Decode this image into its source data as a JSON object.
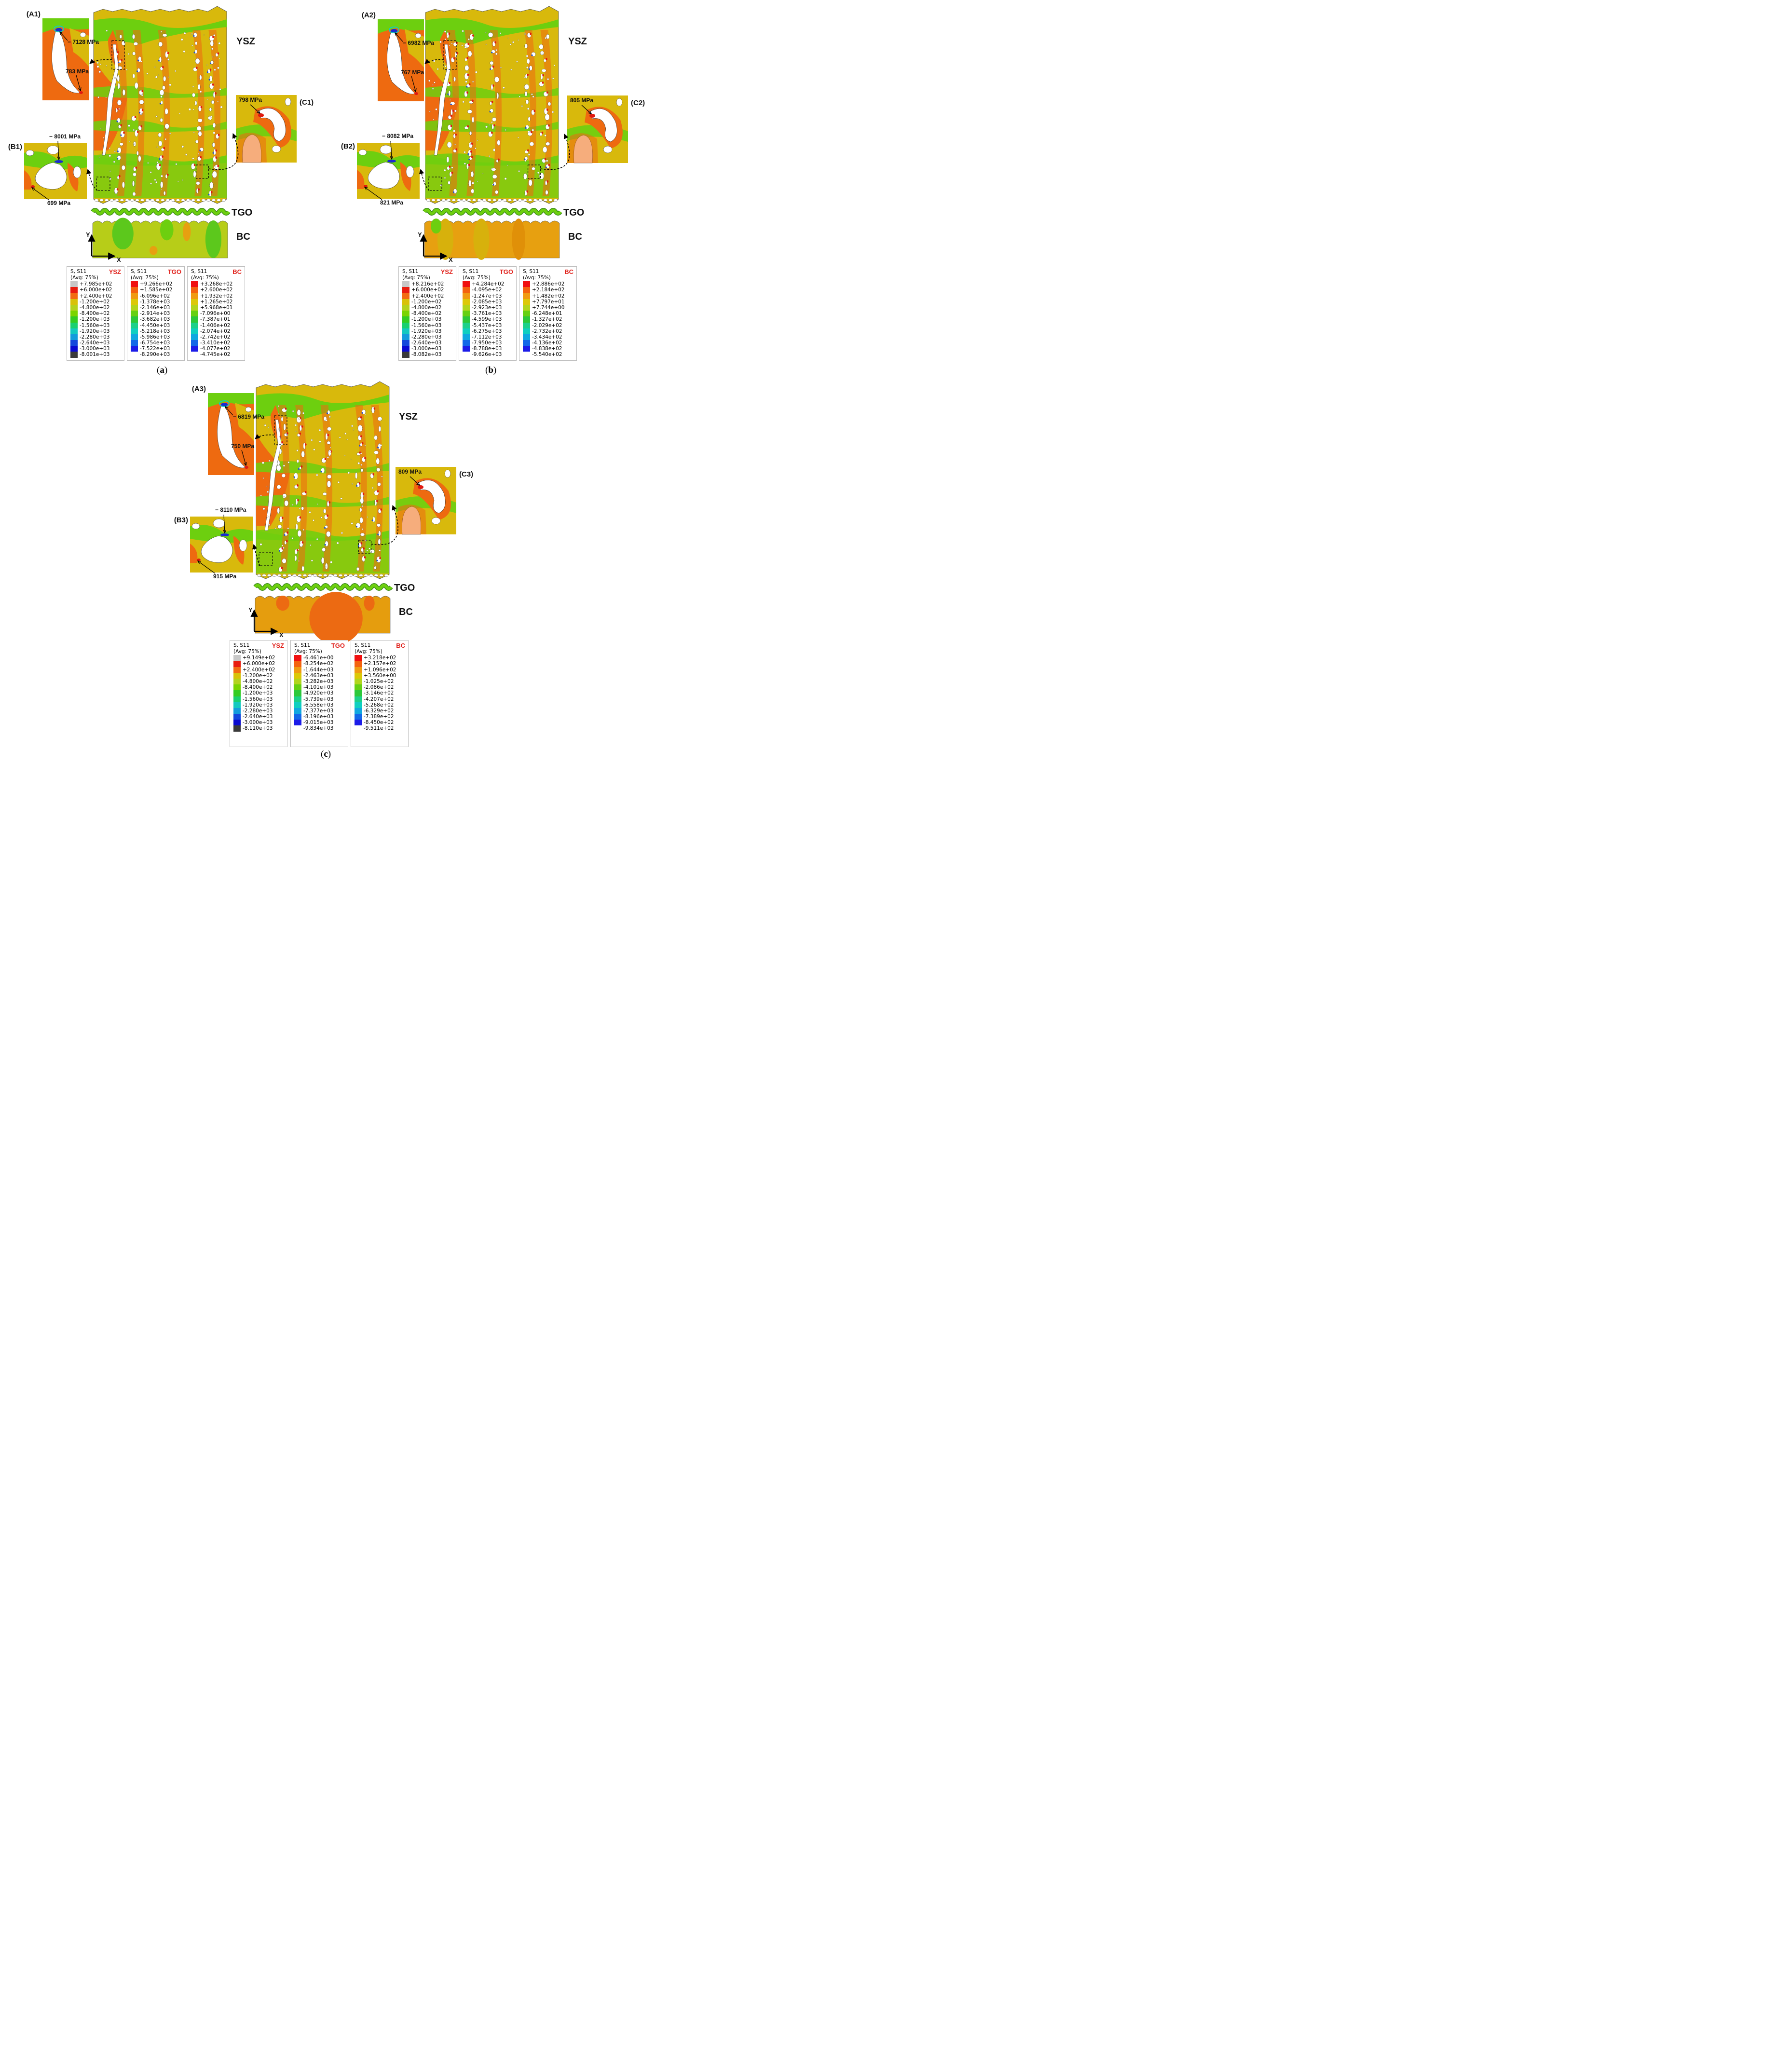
{
  "panels": [
    {
      "id": "a",
      "caption": "a",
      "layer_labels": {
        "top_coat": "YSZ",
        "oxide": "TGO",
        "bond_coat": "BC"
      },
      "axes": {
        "y": "Y",
        "x": "X"
      },
      "insets": [
        {
          "name": "(A1)",
          "callouts": [
            "− 7128 MPa",
            "783 MPa"
          ]
        },
        {
          "name": "(B1)",
          "callouts": [
            "− 8001 MPa",
            "699 MPa"
          ]
        },
        {
          "name": "(C1)",
          "callouts": [
            "798 MPa"
          ]
        }
      ],
      "legends": [
        {
          "material": "YSZ",
          "title": "S, S11",
          "avg": "(Avg: 75%)",
          "values": [
            "+7.985e+02",
            "+6.000e+02",
            "+2.400e+02",
            "-1.200e+02",
            "-4.800e+02",
            "-8.400e+02",
            "-1.200e+03",
            "-1.560e+03",
            "-1.920e+03",
            "-2.280e+03",
            "-2.640e+03",
            "-3.000e+03",
            "-8.001e+03"
          ]
        },
        {
          "material": "TGO",
          "title": "S, S11",
          "avg": "(Avg: 75%)",
          "values": [
            "+9.266e+02",
            "+1.585e+02",
            "-6.096e+02",
            "-1.378e+03",
            "-2.146e+03",
            "-2.914e+03",
            "-3.682e+03",
            "-4.450e+03",
            "-5.218e+03",
            "-5.986e+03",
            "-6.754e+03",
            "-7.522e+03",
            "-8.290e+03"
          ]
        },
        {
          "material": "BC",
          "title": "S, S11",
          "avg": "(Avg: 75%)",
          "values": [
            "+3.268e+02",
            "+2.600e+02",
            "+1.932e+02",
            "+1.265e+02",
            "+5.968e+01",
            "-7.096e+00",
            "-7.387e+01",
            "-1.406e+02",
            "-2.074e+02",
            "-2.742e+02",
            "-3.410e+02",
            "-4.077e+02",
            "-4.745e+02"
          ]
        }
      ]
    },
    {
      "id": "b",
      "caption": "b",
      "layer_labels": {
        "top_coat": "YSZ",
        "oxide": "TGO",
        "bond_coat": "BC"
      },
      "axes": {
        "y": "Y",
        "x": "X"
      },
      "insets": [
        {
          "name": "(A2)",
          "callouts": [
            "− 6982 MPa",
            "767 MPa"
          ]
        },
        {
          "name": "(B2)",
          "callouts": [
            "− 8082 MPa",
            "821 MPa"
          ]
        },
        {
          "name": "(C2)",
          "callouts": [
            "805 MPa"
          ]
        }
      ],
      "legends": [
        {
          "material": "YSZ",
          "title": "S, S11",
          "avg": "(Avg: 75%)",
          "values": [
            "+8.216e+02",
            "+6.000e+02",
            "+2.400e+02",
            "-1.200e+02",
            "-4.800e+02",
            "-8.400e+02",
            "-1.200e+03",
            "-1.560e+03",
            "-1.920e+03",
            "-2.280e+03",
            "-2.640e+03",
            "-3.000e+03",
            "-8.082e+03"
          ]
        },
        {
          "material": "TGO",
          "title": "S, S11",
          "avg": "(Avg: 75%)",
          "values": [
            "+4.284e+02",
            "-4.095e+02",
            "-1.247e+03",
            "-2.085e+03",
            "-2.923e+03",
            "-3.761e+03",
            "-4.599e+03",
            "-5.437e+03",
            "-6.275e+03",
            "-7.112e+03",
            "-7.950e+03",
            "-8.788e+03",
            "-9.626e+03"
          ]
        },
        {
          "material": "BC",
          "title": "S, S11",
          "avg": "(Avg: 75%)",
          "values": [
            "+2.886e+02",
            "+2.184e+02",
            "+1.482e+02",
            "+7.797e+01",
            "+7.744e+00",
            "-6.248e+01",
            "-1.327e+02",
            "-2.029e+02",
            "-2.732e+02",
            "-3.434e+02",
            "-4.136e+02",
            "-4.838e+02",
            "-5.540e+02"
          ]
        }
      ]
    },
    {
      "id": "c",
      "caption": "c",
      "layer_labels": {
        "top_coat": "YSZ",
        "oxide": "TGO",
        "bond_coat": "BC"
      },
      "axes": {
        "y": "Y",
        "x": "X"
      },
      "insets": [
        {
          "name": "(A3)",
          "callouts": [
            "− 6819 MPa",
            "750 MPa"
          ]
        },
        {
          "name": "(B3)",
          "callouts": [
            "− 8110 MPa",
            "915 MPa"
          ]
        },
        {
          "name": "(C3)",
          "callouts": [
            "809 MPa"
          ]
        }
      ],
      "legends": [
        {
          "material": "YSZ",
          "title": "S, S11",
          "avg": "(Avg: 75%)",
          "values": [
            "+9.149e+02",
            "+6.000e+02",
            "+2.400e+02",
            "-1.200e+02",
            "-4.800e+02",
            "-8.400e+02",
            "-1.200e+03",
            "-1.560e+03",
            "-1.920e+03",
            "-2.280e+03",
            "-2.640e+03",
            "-3.000e+03",
            "-8.110e+03"
          ]
        },
        {
          "material": "TGO",
          "title": "S, S11",
          "avg": "(Avg: 75%)",
          "values": [
            "-6.461e+00",
            "-8.254e+02",
            "-1.644e+03",
            "-2.463e+03",
            "-3.282e+03",
            "-4.101e+03",
            "-4.920e+03",
            "-5.739e+03",
            "-6.558e+03",
            "-7.377e+03",
            "-8.196e+03",
            "-9.015e+03",
            "-9.834e+03"
          ]
        },
        {
          "material": "BC",
          "title": "S, S11",
          "avg": "(Avg: 75%)",
          "values": [
            "+3.218e+02",
            "+2.157e+02",
            "+1.096e+02",
            "+3.560e+00",
            "-1.025e+02",
            "-2.086e+02",
            "-3.146e+02",
            "-4.207e+02",
            "-5.268e+02",
            "-6.329e+02",
            "-7.389e+02",
            "-8.450e+02",
            "-9.511e+02"
          ]
        }
      ]
    }
  ],
  "colors": {
    "ysz_scale": [
      "#c8c8c8",
      "#e81c10",
      "#f26b12",
      "#d8c10a",
      "#b4d21e",
      "#7ad400",
      "#33cc22",
      "#19d070",
      "#14c9c0",
      "#149cdc",
      "#1448dc",
      "#0a0ad0",
      "#3a3a3a"
    ],
    "fe_scale": [
      "#f01010",
      "#f4620f",
      "#f09a12",
      "#dcc808",
      "#b2d51c",
      "#66d012",
      "#2cc83a",
      "#1cd08a",
      "#10cfc0",
      "#10a8e0",
      "#1268e8",
      "#1c1ce8"
    ],
    "field": {
      "ysz_base": "#d8b90c",
      "green": "#6dcf0f",
      "orange": "#ee6a10",
      "red": "#e01a10",
      "blue": "#1a4ed8",
      "bc_a": "#b7cd18",
      "bc_b": "#e7a010",
      "bc_c": "#e59d0e"
    }
  }
}
